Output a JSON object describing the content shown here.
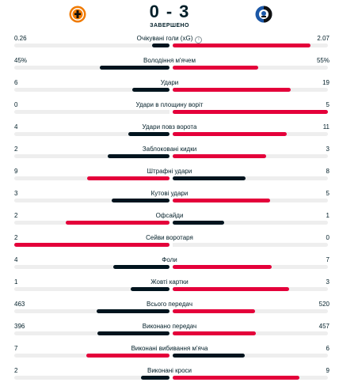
{
  "match": {
    "home_team_logo": "shakhtar-logo",
    "away_team_logo": "atalanta-logo",
    "home_score": "0",
    "dash": "-",
    "away_score": "3",
    "status": "ЗАВЕРШЕНО"
  },
  "colors": {
    "winner": "#e4003a",
    "loser": "#00141e",
    "track": "#eeeeee"
  },
  "stats": [
    {
      "label": "Очікувані голи (xG)",
      "home": "0.26",
      "away": "2.07",
      "home_share": 0.112,
      "away_share": 0.888,
      "info": true
    },
    {
      "label": "Володіння м'ячем",
      "home": "45%",
      "away": "55%",
      "home_share": 0.45,
      "away_share": 0.55
    },
    {
      "label": "Удари",
      "home": "6",
      "away": "19",
      "home_share": 0.24,
      "away_share": 0.76
    },
    {
      "label": "Удари в площину воріт",
      "home": "0",
      "away": "5",
      "home_share": 0.0,
      "away_share": 1.0
    },
    {
      "label": "Удари повз ворота",
      "home": "4",
      "away": "11",
      "home_share": 0.267,
      "away_share": 0.733
    },
    {
      "label": "Заблоковані кидки",
      "home": "2",
      "away": "3",
      "home_share": 0.4,
      "away_share": 0.6
    },
    {
      "label": "Штрафні удари",
      "home": "9",
      "away": "8",
      "home_share": 0.529,
      "away_share": 0.471
    },
    {
      "label": "Кутові удари",
      "home": "3",
      "away": "5",
      "home_share": 0.375,
      "away_share": 0.625
    },
    {
      "label": "Офсайди",
      "home": "2",
      "away": "1",
      "home_share": 0.667,
      "away_share": 0.333
    },
    {
      "label": "Сейви воротаря",
      "home": "2",
      "away": "0",
      "home_share": 1.0,
      "away_share": 0.0
    },
    {
      "label": "Фоли",
      "home": "4",
      "away": "7",
      "home_share": 0.364,
      "away_share": 0.636
    },
    {
      "label": "Жовті картки",
      "home": "1",
      "away": "3",
      "home_share": 0.25,
      "away_share": 0.75
    },
    {
      "label": "Всього передач",
      "home": "463",
      "away": "520",
      "home_share": 0.471,
      "away_share": 0.529
    },
    {
      "label": "Виконано передач",
      "home": "396",
      "away": "457",
      "home_share": 0.464,
      "away_share": 0.536
    },
    {
      "label": "Виконані вибивання м'яча",
      "home": "7",
      "away": "6",
      "home_share": 0.538,
      "away_share": 0.462
    },
    {
      "label": "Виконані кроси",
      "home": "2",
      "away": "9",
      "home_share": 0.182,
      "away_share": 0.818
    }
  ]
}
